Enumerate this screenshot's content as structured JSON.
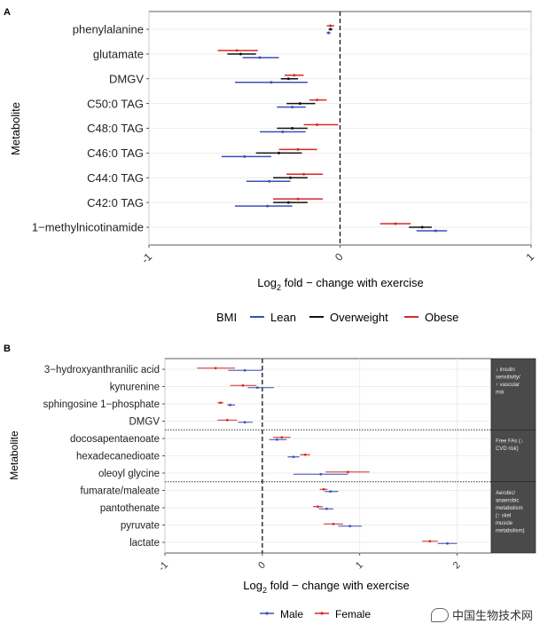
{
  "chart_data": [
    {
      "type": "dot-interval",
      "panel_label": "A",
      "ylabel": "Metabolite",
      "xlabel_prefix": "Log",
      "xlabel_sub": "2",
      "xlabel_suffix": " fold − change with exercise",
      "xlim": [
        -1.0,
        1.0
      ],
      "xticks": [
        -1,
        0,
        1
      ],
      "xtick_labels": [
        "-1",
        "0",
        "1"
      ],
      "grid": true,
      "reference_line": 0,
      "legend": {
        "title": "BMI",
        "placement": "bottom"
      },
      "categories": [
        "phenylalanine",
        "glutamate",
        "DMGV",
        "C50:0 TAG",
        "C48:0 TAG",
        "C46:0 TAG",
        "C44:0 TAG",
        "C42:0 TAG",
        "1−methylnicotinamide"
      ],
      "series": [
        {
          "name": "Lean",
          "color": "#3b4fb8",
          "values": [
            -0.06,
            -0.42,
            -0.36,
            -0.25,
            -0.3,
            -0.5,
            -0.37,
            -0.38,
            0.5
          ],
          "lower": [
            -0.07,
            -0.51,
            -0.55,
            -0.33,
            -0.42,
            -0.62,
            -0.49,
            -0.55,
            0.4
          ],
          "upper": [
            -0.05,
            -0.32,
            -0.17,
            -0.18,
            -0.18,
            -0.36,
            -0.26,
            -0.25,
            0.56
          ]
        },
        {
          "name": "Overweight",
          "color": "#111111",
          "values": [
            -0.05,
            -0.52,
            -0.27,
            -0.21,
            -0.25,
            -0.32,
            -0.26,
            -0.27,
            0.43
          ],
          "lower": [
            -0.06,
            -0.59,
            -0.31,
            -0.28,
            -0.33,
            -0.44,
            -0.35,
            -0.35,
            0.36
          ],
          "upper": [
            -0.04,
            -0.44,
            -0.22,
            -0.13,
            -0.17,
            -0.2,
            -0.17,
            -0.17,
            0.48
          ]
        },
        {
          "name": "Obese",
          "color": "#d42a2a",
          "values": [
            -0.05,
            -0.54,
            -0.24,
            -0.12,
            -0.12,
            -0.22,
            -0.19,
            -0.22,
            0.29
          ],
          "lower": [
            -0.07,
            -0.64,
            -0.29,
            -0.16,
            -0.19,
            -0.32,
            -0.28,
            -0.35,
            0.21
          ],
          "upper": [
            -0.03,
            -0.43,
            -0.19,
            -0.07,
            -0.01,
            -0.12,
            -0.09,
            -0.09,
            0.37
          ]
        }
      ]
    },
    {
      "type": "dot-interval",
      "panel_label": "B",
      "ylabel": "Metabolite",
      "xlabel_prefix": "Log",
      "xlabel_sub": "2",
      "xlabel_suffix": " fold − change with exercise",
      "xlim": [
        -1.0,
        2.35
      ],
      "xticks": [
        -1,
        0,
        1,
        2
      ],
      "xtick_labels": [
        "-1",
        "0",
        "1",
        "2"
      ],
      "grid": true,
      "reference_line": 0,
      "legend": {
        "title": "",
        "placement": "bottom"
      },
      "categories": [
        "3−hydroxyanthranilic acid",
        "kynurenine",
        "sphingosine 1−phosphate",
        "DMGV",
        "docosapentaenoate",
        "hexadecanedioate",
        "oleoyl glycine",
        "fumarate/maleate",
        "pantothenate",
        "pyruvate",
        "lactate"
      ],
      "groups": [
        {
          "label": "↓ insulin sensitivity/ ↑ vascular risk",
          "count": 4
        },
        {
          "label": "Free FAs (↓ CVD risk)",
          "count": 3
        },
        {
          "label": "Aerobic/ anaerobic metabolism (↑ skel muscle metabolism)",
          "count": 4
        }
      ],
      "series": [
        {
          "name": "Male",
          "color": "#3b4fb8",
          "values": [
            -0.18,
            -0.05,
            -0.33,
            -0.18,
            0.15,
            0.32,
            0.6,
            0.7,
            0.66,
            0.9,
            1.9
          ],
          "lower": [
            -0.35,
            -0.15,
            -0.36,
            -0.25,
            0.07,
            0.26,
            0.32,
            0.64,
            0.58,
            0.78,
            1.8
          ],
          "upper": [
            0.0,
            0.12,
            -0.28,
            -0.1,
            0.25,
            0.38,
            0.88,
            0.78,
            0.73,
            1.02,
            2.0
          ]
        },
        {
          "name": "Female",
          "color": "#d42a2a",
          "values": [
            -0.48,
            -0.2,
            -0.43,
            -0.36,
            0.2,
            0.44,
            0.88,
            0.63,
            0.57,
            0.73,
            1.72
          ],
          "lower": [
            -0.67,
            -0.33,
            -0.46,
            -0.46,
            0.11,
            0.39,
            0.65,
            0.59,
            0.52,
            0.63,
            1.64
          ],
          "upper": [
            -0.28,
            -0.06,
            -0.4,
            -0.26,
            0.29,
            0.49,
            1.1,
            0.67,
            0.62,
            0.83,
            1.8
          ]
        }
      ]
    }
  ],
  "watermark": {
    "text": "中国生物技术网",
    "icon": "wechat-icon"
  }
}
